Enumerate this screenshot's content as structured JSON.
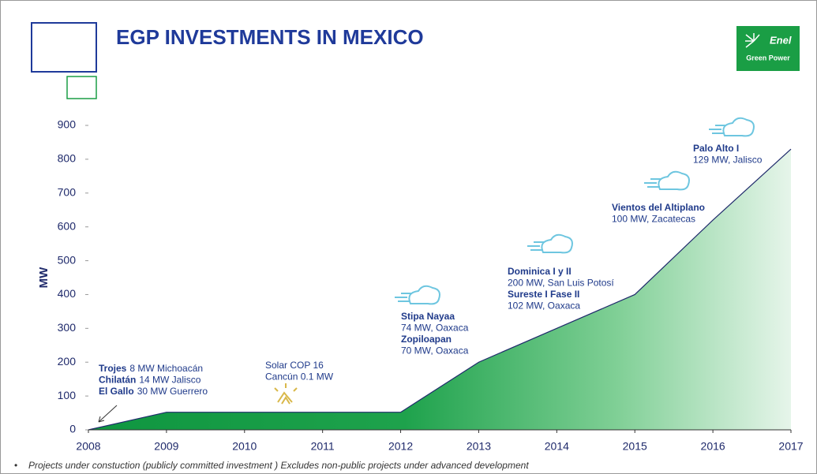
{
  "chart_data": {
    "type": "area",
    "title": "EGP INVESTMENTS IN MEXICO",
    "logo": {
      "brand": "Enel",
      "subtitle": "Green Power"
    },
    "ylabel": "MW",
    "x": [
      2008,
      2009,
      2010,
      2011,
      2012,
      2013,
      2014,
      2015,
      2016,
      2017
    ],
    "values": [
      0,
      52,
      52,
      52,
      52,
      200,
      300,
      400,
      620,
      830
    ],
    "color": "#1a9e45",
    "line_color": "#1f2a6b",
    "xlim": [
      2008,
      2017
    ],
    "xticks": [
      2008,
      2009,
      2010,
      2011,
      2012,
      2013,
      2014,
      2015,
      2016,
      2017
    ],
    "ylim": [
      0,
      900
    ],
    "yticks": [
      0,
      100,
      200,
      300,
      400,
      500,
      600,
      700,
      800,
      900
    ],
    "annotations": [
      {
        "items": [
          {
            "name": "Trojes",
            "detail": "8 MW Michoacán"
          },
          {
            "name": "Chilatán",
            "detail": "14 MW Jalisco"
          },
          {
            "name": "El Gallo",
            "detail": "30 MW Guerrero"
          }
        ]
      },
      {
        "items": [
          {
            "name": "Solar COP 16",
            "detail": "Cancún 0.1 MW"
          }
        ]
      },
      {
        "items": [
          {
            "name": "Stipa Nayaa",
            "detail": "74 MW, Oaxaca"
          },
          {
            "name": "Zopiloapan",
            "detail": "70 MW, Oaxaca"
          }
        ]
      },
      {
        "items": [
          {
            "name": "Dominica I y II",
            "detail": "200 MW, San Luis Potosí"
          },
          {
            "name": "Sureste I Fase II",
            "detail": "102 MW, Oaxaca"
          }
        ]
      },
      {
        "items": [
          {
            "name": "Vientos del Altiplano",
            "detail": "100 MW, Zacatecas"
          }
        ]
      },
      {
        "items": [
          {
            "name": "Palo Alto I",
            "detail": "129 MW, Jalisco"
          }
        ]
      }
    ],
    "footnote": "Projects under constuction (publicly committed investment ) Excludes non-public projects under advanced development"
  }
}
